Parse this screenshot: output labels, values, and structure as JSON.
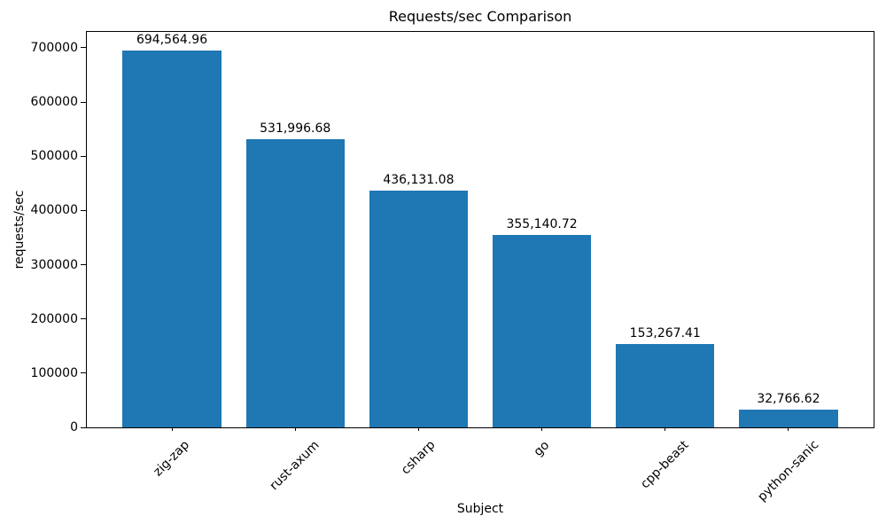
{
  "chart_data": {
    "type": "bar",
    "title": "Requests/sec Comparison",
    "xlabel": "Subject",
    "ylabel": "requests/sec",
    "categories": [
      "zig-zap",
      "rust-axum",
      "csharp",
      "go",
      "cpp-beast",
      "python-sanic"
    ],
    "values": [
      694564.96,
      531996.68,
      436131.08,
      355140.72,
      153267.41,
      32766.62
    ],
    "bar_labels": [
      "694,564.96",
      "531,996.68",
      "436,131.08",
      "355,140.72",
      "153,267.41",
      "32,766.62"
    ],
    "yticks": [
      0,
      100000,
      200000,
      300000,
      400000,
      500000,
      600000,
      700000
    ],
    "ytick_labels": [
      "0",
      "100000",
      "200000",
      "300000",
      "400000",
      "500000",
      "600000",
      "700000"
    ],
    "ylim": [
      0,
      729293
    ],
    "bar_color": "#1f77b4",
    "axis_color": "#000000",
    "grid": false,
    "legend": null
  }
}
